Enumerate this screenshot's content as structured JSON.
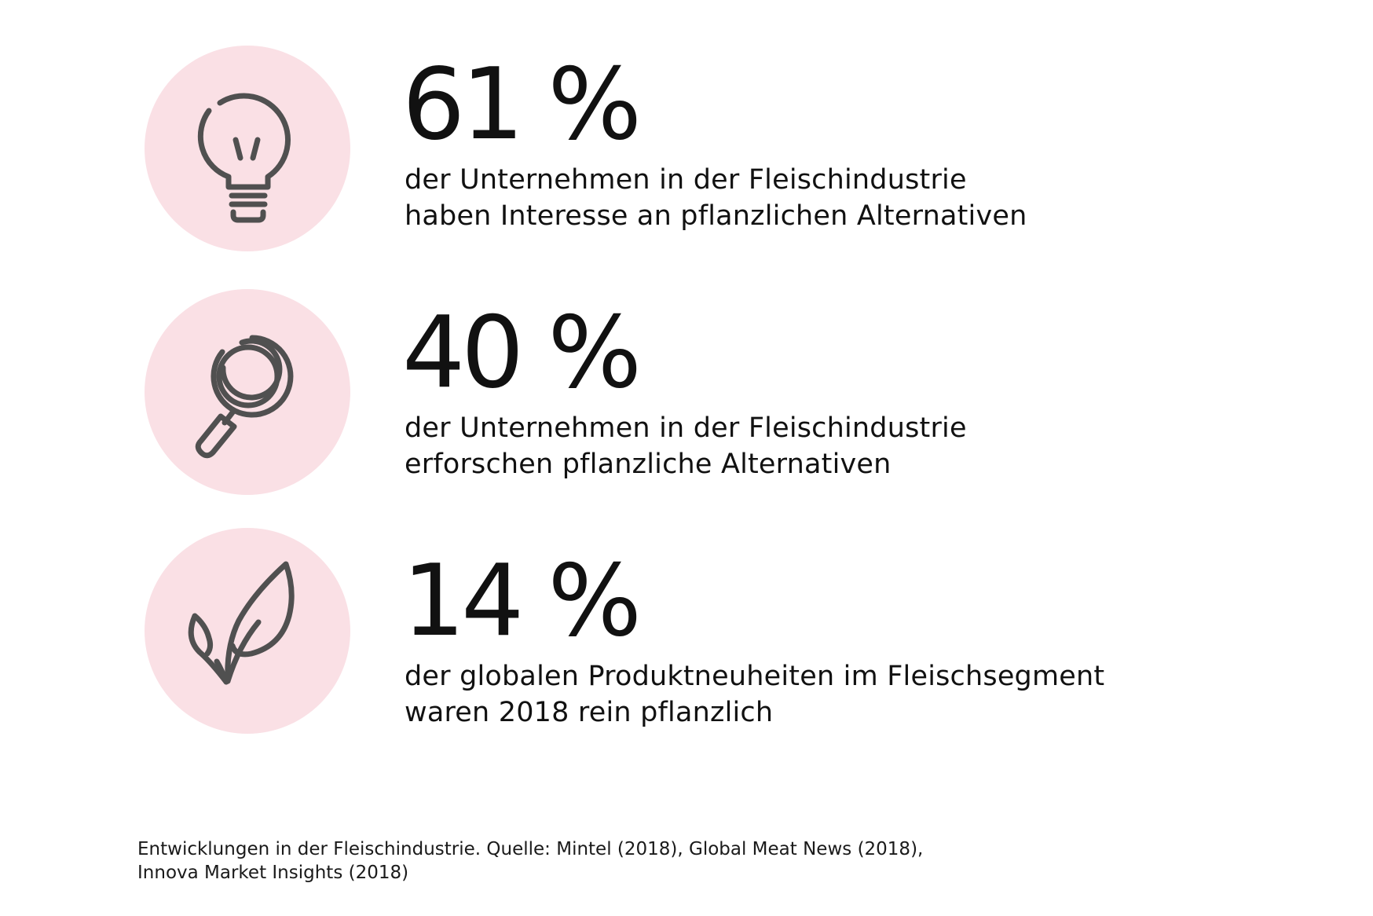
{
  "stats": [
    {
      "icon": "lightbulb-icon",
      "value": "61 %",
      "line1": "der Unternehmen in der Fleischindustrie",
      "line2": "haben Interesse an pflanzlichen Alternativen"
    },
    {
      "icon": "magnifying-glass-icon",
      "value": "40 %",
      "line1": "der Unternehmen in der Fleischindustrie",
      "line2": "erforschen pflanzliche Alternativen"
    },
    {
      "icon": "leaf-icon",
      "value": "14 %",
      "line1": "der globalen Produktneuheiten im Fleischsegment",
      "line2": "waren 2018 rein pflanzlich"
    }
  ],
  "source": {
    "line1": "Entwicklungen in der Fleischindustrie. Quelle: Mintel (2018), Global Meat News (2018),",
    "line2": "Innova Market Insights (2018)"
  },
  "colors": {
    "circle": "#fae0e5",
    "icon_stroke": "#505050",
    "text": "#111111"
  }
}
